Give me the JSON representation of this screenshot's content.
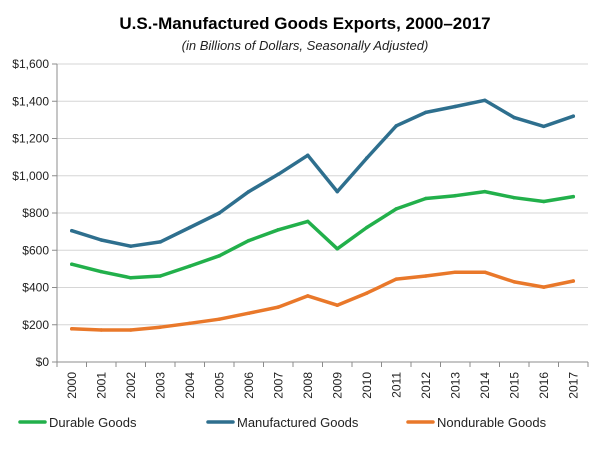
{
  "chart_data": {
    "type": "line",
    "title": "U.S.-Manufactured Goods Exports, 2000–2017",
    "subtitle": "(in Billions of Dollars, Seasonally Adjusted)",
    "xlabel": "",
    "ylabel": "",
    "categories": [
      "2000",
      "2001",
      "2002",
      "2003",
      "2004",
      "2005",
      "2006",
      "2007",
      "2008",
      "2009",
      "2010",
      "2011",
      "2012",
      "2013",
      "2014",
      "2015",
      "2016",
      "2017"
    ],
    "ylim": [
      0,
      1600
    ],
    "yticks": [
      0,
      200,
      400,
      600,
      800,
      1000,
      1200,
      1400,
      1600
    ],
    "ytick_labels": [
      "$0",
      "$200",
      "$400",
      "$600",
      "$800",
      "$1,000",
      "$1,200",
      "$1,400",
      "$1,600"
    ],
    "grid": true,
    "legend_position": "bottom",
    "series": [
      {
        "name": "Durable Goods",
        "color": "#22b04b",
        "values": [
          525,
          485,
          452,
          462,
          515,
          570,
          652,
          710,
          755,
          608,
          722,
          822,
          878,
          893,
          915,
          882,
          862,
          888
        ]
      },
      {
        "name": "Manufactured Goods",
        "color": "#2e6f8e",
        "values": [
          705,
          655,
          622,
          645,
          722,
          800,
          915,
          1008,
          1110,
          915,
          1095,
          1268,
          1340,
          1372,
          1405,
          1312,
          1265,
          1320
        ]
      },
      {
        "name": "Nondurable Goods",
        "color": "#e9782a",
        "values": [
          178,
          172,
          172,
          187,
          208,
          230,
          262,
          295,
          355,
          305,
          370,
          445,
          462,
          482,
          482,
          430,
          402,
          435
        ]
      }
    ]
  }
}
